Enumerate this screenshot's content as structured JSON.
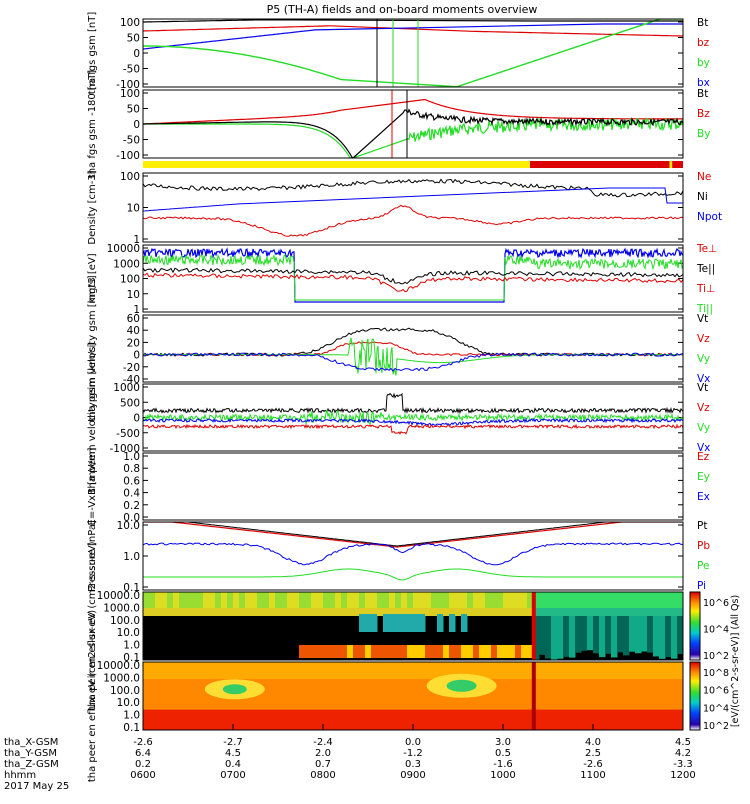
{
  "title": "P5 (TH-A) fields and on-board moments overview",
  "colors": {
    "black": "#000000",
    "red": "#dd0000",
    "green": "#22dd22",
    "blue": "#0000ee",
    "yellow": "#ffee00"
  },
  "chart_data": {
    "type": "line",
    "time_axis": {
      "ticks": [
        "0600",
        "0700",
        "0800",
        "0900",
        "1000",
        "1100",
        "1200"
      ],
      "date": "2017 May 25",
      "range_hours": [
        6,
        12
      ],
      "rows": [
        {
          "label": "tha_X-GSM",
          "values": [
            "-2.6",
            "-2.7",
            "-2.4",
            "0.0",
            "3.0",
            "4.0",
            "4.5"
          ]
        },
        {
          "label": "tha_Y-GSM",
          "values": [
            "6.4",
            "4.5",
            "2.0",
            "-1.2",
            "0.5",
            "2.5",
            "4.2"
          ]
        },
        {
          "label": "tha_Z-GSM",
          "values": [
            "0.2",
            "0.4",
            "0.7",
            "0.3",
            "-1.6",
            "-2.6",
            "-3.3"
          ]
        },
        {
          "label": "hhmm",
          "values": [
            "0600",
            "0700",
            "0800",
            "0900",
            "1000",
            "1100",
            "1200"
          ]
        }
      ]
    },
    "panels": [
      {
        "id": "fgs_gsm",
        "ylabel": "tha fgs gsm [nT]",
        "yticks": [
          "100",
          "50",
          "0",
          "-50",
          "-100"
        ],
        "ylim": [
          -100,
          100
        ],
        "legend": [
          {
            "name": "Bt",
            "color": "black"
          },
          {
            "name": "bz",
            "color": "red"
          },
          {
            "name": "by",
            "color": "green"
          },
          {
            "name": "bx",
            "color": "blue"
          }
        ]
      },
      {
        "id": "fgs_dsl",
        "ylabel": "tha fgs gsm -180 [nT]",
        "yticks": [
          "100",
          "50",
          "0",
          "-50",
          "-100"
        ],
        "ylim": [
          -120,
          120
        ],
        "legend": [
          {
            "name": "Bt",
            "color": "black"
          },
          {
            "name": "Bz",
            "color": "red"
          },
          {
            "name": "By",
            "color": "green"
          }
        ]
      },
      {
        "id": "density",
        "ylabel": "Density [cm-3]",
        "yticks": [
          "100",
          "10",
          "1"
        ],
        "log": true,
        "legend": [
          {
            "name": "Ne",
            "color": "red"
          },
          {
            "name": "Ni",
            "color": "black"
          },
          {
            "name": "Npot",
            "color": "blue"
          }
        ]
      },
      {
        "id": "temperature",
        "ylabel": "mgt3 [eV]",
        "yticks": [
          "10000",
          "1000",
          "100",
          "10",
          "1"
        ],
        "log": true,
        "legend": [
          {
            "name": "Te⊥",
            "color": "red"
          },
          {
            "name": "Te||",
            "color": "black"
          },
          {
            "name": "Ti⊥",
            "color": "red"
          },
          {
            "name": "Ti||",
            "color": "green"
          }
        ]
      },
      {
        "id": "peim_velocity",
        "ylabel": "tha peim velocity gsm [km/s]",
        "yticks": [
          "60",
          "40",
          "20",
          "0",
          "-20",
          "-40"
        ],
        "ylim": [
          -40,
          60
        ],
        "legend": [
          {
            "name": "Vt",
            "color": "black"
          },
          {
            "name": "Vz",
            "color": "red"
          },
          {
            "name": "Vy",
            "color": "green"
          },
          {
            "name": "Vx",
            "color": "blue"
          }
        ]
      },
      {
        "id": "peem_velocity",
        "ylabel": "tha peem velocity gsm [km/s]",
        "yticks": [
          "1000",
          "500",
          "0",
          "-500",
          "-1000"
        ],
        "ylim": [
          -1000,
          1000
        ],
        "legend": [
          {
            "name": "Vt",
            "color": "black"
          },
          {
            "name": "Vz",
            "color": "red"
          },
          {
            "name": "Vy",
            "color": "green"
          },
          {
            "name": "Vx",
            "color": "blue"
          }
        ]
      },
      {
        "id": "efield",
        "ylabel": "E=-VxB [mV/m]",
        "yticks": [
          "1.0",
          "0.8",
          "0.6",
          "0.4",
          "0.2",
          "0.0"
        ],
        "ylim": [
          0,
          1
        ],
        "legend": [
          {
            "name": "Ez",
            "color": "red"
          },
          {
            "name": "Ey",
            "color": "green"
          },
          {
            "name": "Ex",
            "color": "blue"
          }
        ]
      },
      {
        "id": "pressure",
        "ylabel": "Pressure [nPa]",
        "yticks": [
          "10.0",
          "1.0",
          "0.1"
        ],
        "log": true,
        "legend": [
          {
            "name": "Pt",
            "color": "black"
          },
          {
            "name": "Pb",
            "color": "red"
          },
          {
            "name": "Pe",
            "color": "green"
          },
          {
            "name": "Pi",
            "color": "blue"
          }
        ]
      },
      {
        "id": "peir_spec",
        "ylabel": "tha peir en eflux eV (cm2-s-sr-eV)",
        "yticks": [
          "10000.0",
          "1000.0",
          "100.0",
          "10.0",
          "1.0",
          "0.1"
        ],
        "log": true
      },
      {
        "id": "peer_spec",
        "ylabel": "tha peer en eflux eV (cm2-s-sr-eV)",
        "yticks": [
          "10000.0",
          "1000.0",
          "100.0",
          "10.0",
          "1.0",
          "0.1"
        ],
        "log": true
      }
    ],
    "colorbars": [
      {
        "label": "[eV/(cm^2-s-sr-eV)] (All Qs)",
        "ticks": [
          "10^6",
          "10^4",
          "10^2"
        ]
      },
      {
        "label": "[eV/(cm^2-s-sr-eV)]",
        "ticks": [
          "10^8",
          "10^6",
          "10^4",
          "10^2"
        ]
      }
    ],
    "mode_bar": [
      {
        "from": 6.0,
        "to": 10.3,
        "color": "yellow"
      },
      {
        "from": 10.3,
        "to": 11.85,
        "color": "red"
      },
      {
        "from": 11.85,
        "to": 11.88,
        "color": "yellow"
      },
      {
        "from": 11.88,
        "to": 12.0,
        "color": "red"
      }
    ]
  }
}
